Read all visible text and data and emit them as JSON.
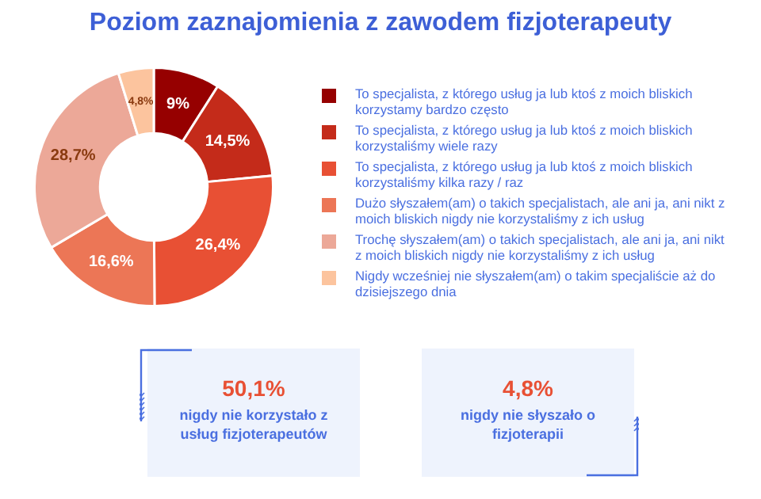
{
  "chart_data": {
    "type": "donut",
    "title": "Poziom zaznajomienia z zawodem fizjoterapeuty",
    "categories": [
      "To specjalista, z którego usług ja lub ktoś z moich bliskich korzystamy bardzo często",
      "To specjalista, z którego usług ja lub ktoś z moich bliskich korzystaliśmy wiele razy",
      "To specjalista, z którego usług ja lub ktoś z moich bliskich korzystaliśmy kilka razy / raz",
      "Dużo słyszałem(am) o takich specjalistach, ale ani ja, ani nikt z moich bliskich nigdy nie korzystaliśmy z ich usług",
      "Trochę słyszałem(am) o takich specjalistach, ale ani ja, ani nikt z moich bliskich nigdy nie korzystaliśmy z ich usług",
      "Nigdy wcześniej nie słyszałem(am) o takim specjaliście aż do dzisiejszego dnia"
    ],
    "values": [
      9,
      14.5,
      26.4,
      16.6,
      28.7,
      4.8
    ],
    "value_labels": [
      "9%",
      "14,5%",
      "26,4%",
      "16,6%",
      "28,7%",
      "4,8%"
    ],
    "colors": [
      "#960000",
      "#c42b1a",
      "#e85034",
      "#ec7656",
      "#eca898",
      "#fcc49e"
    ],
    "legend": "right",
    "annotations": [
      "50,1%",
      "nigdy nie korzystało z usług fizjoterapeutów",
      "4,8%",
      "nigdy nie słyszało o fizjoterapii"
    ]
  }
}
